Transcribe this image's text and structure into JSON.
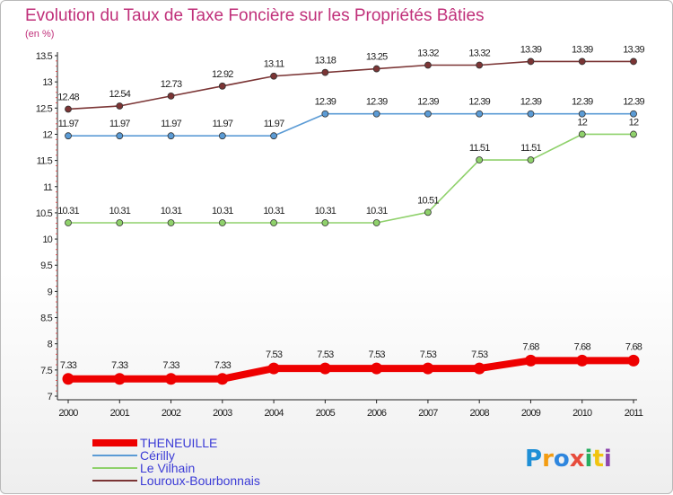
{
  "chart_data": {
    "type": "line",
    "title": "Evolution du Taux de Taxe Foncière sur les Propriétés Bâties",
    "subtitle": "(en %)",
    "x": [
      "2000",
      "2001",
      "2002",
      "2003",
      "2004",
      "2005",
      "2006",
      "2007",
      "2008",
      "2009",
      "2010",
      "2011"
    ],
    "ylim": [
      7,
      13.5
    ],
    "yticks": [
      7,
      7.5,
      8,
      8.5,
      9,
      9.5,
      10,
      10.5,
      11,
      11.5,
      12,
      12.5,
      13,
      13.5
    ],
    "ytick_labels": [
      "7",
      "7.5",
      "8",
      "8.5",
      "9",
      "9.5",
      "10",
      "10.5",
      "11",
      "11.5",
      "12",
      "12.5",
      "13",
      "13.5"
    ],
    "grid": false,
    "legend_position": "bottom-left",
    "series": [
      {
        "name": "THENEUILLE",
        "color": "#ee0000",
        "values": [
          7.33,
          7.33,
          7.33,
          7.33,
          7.53,
          7.53,
          7.53,
          7.53,
          7.53,
          7.68,
          7.68,
          7.68
        ],
        "labels": [
          "7.33",
          "7.33",
          "7.33",
          "7.33",
          "7.53",
          "7.53",
          "7.53",
          "7.53",
          "7.53",
          "7.68",
          "7.68",
          "7.68"
        ]
      },
      {
        "name": "Cérilly",
        "color": "#5b9bd5",
        "values": [
          11.97,
          11.97,
          11.97,
          11.97,
          11.97,
          12.39,
          12.39,
          12.39,
          12.39,
          12.39,
          12.39,
          12.39
        ],
        "labels": [
          "11.97",
          "11.97",
          "11.97",
          "11.97",
          "11.97",
          "12.39",
          "12.39",
          "12.39",
          "12.39",
          "12.39",
          "12.39",
          "12.39"
        ]
      },
      {
        "name": "Le Vilhain",
        "color": "#8fd16b",
        "values": [
          10.31,
          10.31,
          10.31,
          10.31,
          10.31,
          10.31,
          10.31,
          10.51,
          11.51,
          11.51,
          12,
          12
        ],
        "labels": [
          "10.31",
          "10.31",
          "10.31",
          "10.31",
          "10.31",
          "10.31",
          "10.31",
          "10.51",
          "11.51",
          "11.51",
          "12",
          "12"
        ]
      },
      {
        "name": "Louroux-Bourbonnais",
        "color": "#7b3535",
        "values": [
          12.48,
          12.54,
          12.73,
          12.92,
          13.11,
          13.18,
          13.25,
          13.32,
          13.32,
          13.39,
          13.39,
          13.39
        ],
        "labels": [
          "12.48",
          "12.54",
          "12.73",
          "12.92",
          "13.11",
          "13.18",
          "13.25",
          "13.32",
          "13.32",
          "13.39",
          "13.39",
          "13.39"
        ]
      }
    ],
    "legend_text_color": "#3b3bd6"
  },
  "logo": {
    "text": "Proxiti",
    "letters": [
      "P",
      "r",
      "o",
      "x",
      "i",
      "t",
      "i"
    ],
    "colors": [
      "#1f8fd6",
      "#f39c12",
      "#2e86de",
      "#e74c3c",
      "#27ae60",
      "#f1c40f",
      "#8e44ad"
    ]
  }
}
